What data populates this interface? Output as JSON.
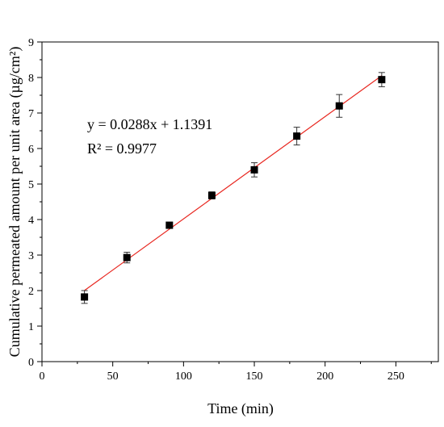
{
  "chart_data": {
    "type": "scatter",
    "title": "",
    "xlabel": "Time (min)",
    "ylabel": "Cumulative permeated amount per unit area (µg/cm²)",
    "xlim": [
      0,
      280
    ],
    "ylim": [
      0,
      9
    ],
    "xticks": [
      0,
      50,
      100,
      150,
      200,
      250
    ],
    "yticks": [
      0,
      1,
      2,
      3,
      4,
      5,
      6,
      7,
      8,
      9
    ],
    "grid": false,
    "legend": "none",
    "series": [
      {
        "x": [
          30,
          60,
          90,
          120,
          150,
          180,
          210,
          240
        ],
        "y": [
          1.82,
          2.93,
          3.84,
          4.68,
          5.4,
          6.35,
          7.2,
          7.94
        ],
        "error": [
          0.18,
          0.15,
          0.05,
          0.1,
          0.2,
          0.25,
          0.32,
          0.2
        ],
        "marker": "square",
        "color": "#000000"
      }
    ],
    "fit": {
      "slope": 0.0288,
      "intercept": 1.1391,
      "x_range": [
        30,
        240
      ],
      "color": "#e8261f"
    },
    "annotations": {
      "equation": "y = 0.0288x + 1.1391",
      "r_squared": "R² = 0.9977"
    }
  }
}
